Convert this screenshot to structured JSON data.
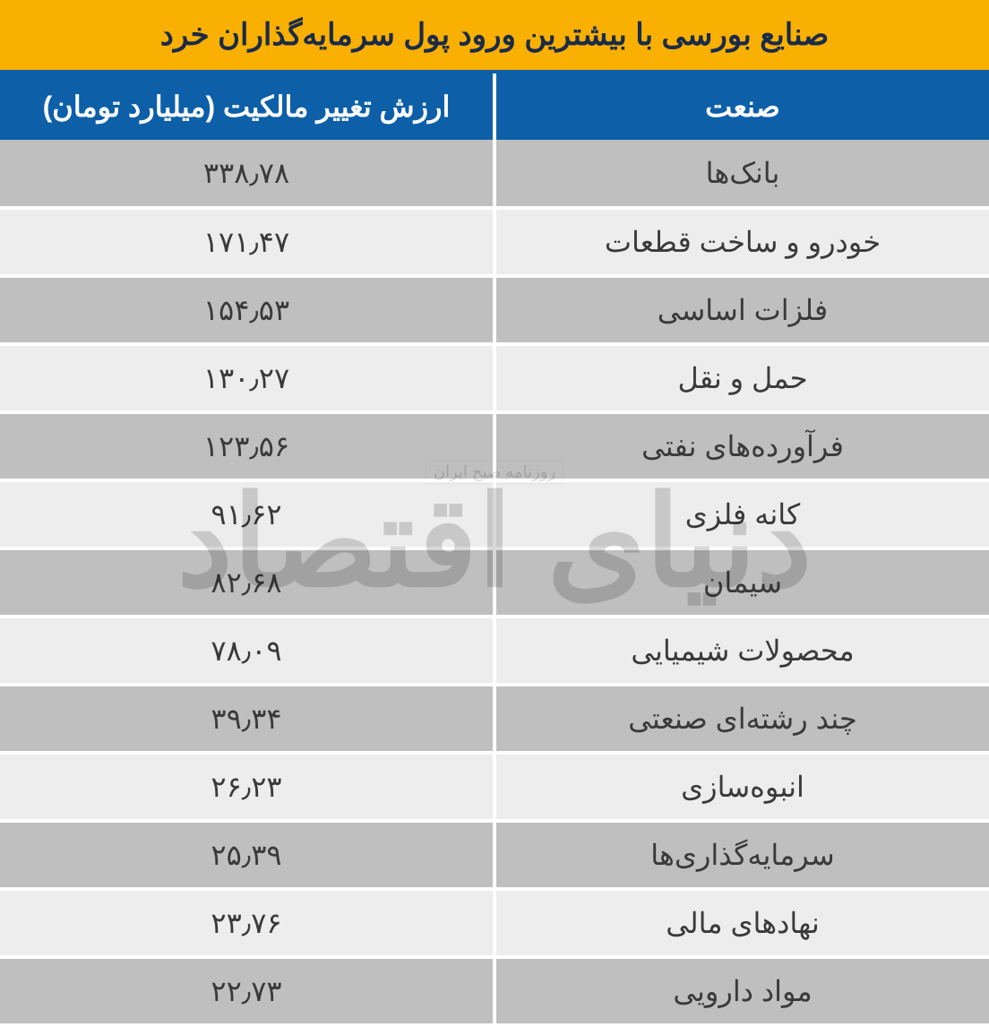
{
  "table": {
    "title": "صنایع بورسی با بیشترین ورود پول سرمایه‌گذاران خرد",
    "title_bg": "#f9b000",
    "title_color": "#1a2b4a",
    "header_bg": "#0d5fa8",
    "header_color": "#ffffff",
    "columns": {
      "industry": "صنعت",
      "value": "ارزش تغییر مالکیت (میلیارد تومان)"
    },
    "row_bg_odd": "#bfbfbf",
    "row_bg_even": "#ededed",
    "text_color": "#3a3a3a",
    "rows": [
      {
        "industry": "بانک‌ها",
        "value": "۳۳۸٫۷۸"
      },
      {
        "industry": "خودرو و ساخت قطعات",
        "value": "۱۷۱٫۴۷"
      },
      {
        "industry": "فلزات اساسی",
        "value": "۱۵۴٫۵۳"
      },
      {
        "industry": "حمل و نقل",
        "value": "۱۳۰٫۲۷"
      },
      {
        "industry": "فرآورده‌های نفتی",
        "value": "۱۲۳٫۵۶"
      },
      {
        "industry": "کانه فلزی",
        "value": "۹۱٫۶۲"
      },
      {
        "industry": "سیمان",
        "value": "۸۲٫۶۸"
      },
      {
        "industry": "محصولات شیمیایی",
        "value": "۷۸٫۰۹"
      },
      {
        "industry": "چند رشته‌ای صنعتی",
        "value": "۳۹٫۳۴"
      },
      {
        "industry": "انبوه‌سازی",
        "value": "۲۶٫۲۳"
      },
      {
        "industry": "سرمایه‌گذاری‌ها",
        "value": "۲۵٫۳۹"
      },
      {
        "industry": "نهادهای مالی",
        "value": "۲۳٫۷۶"
      },
      {
        "industry": "مواد دارویی",
        "value": "۲۲٫۷۳"
      }
    ]
  },
  "watermark": {
    "main": "دنیای اقتصاد",
    "sub": "روزنامه صبح ایران",
    "color": "#000000"
  }
}
